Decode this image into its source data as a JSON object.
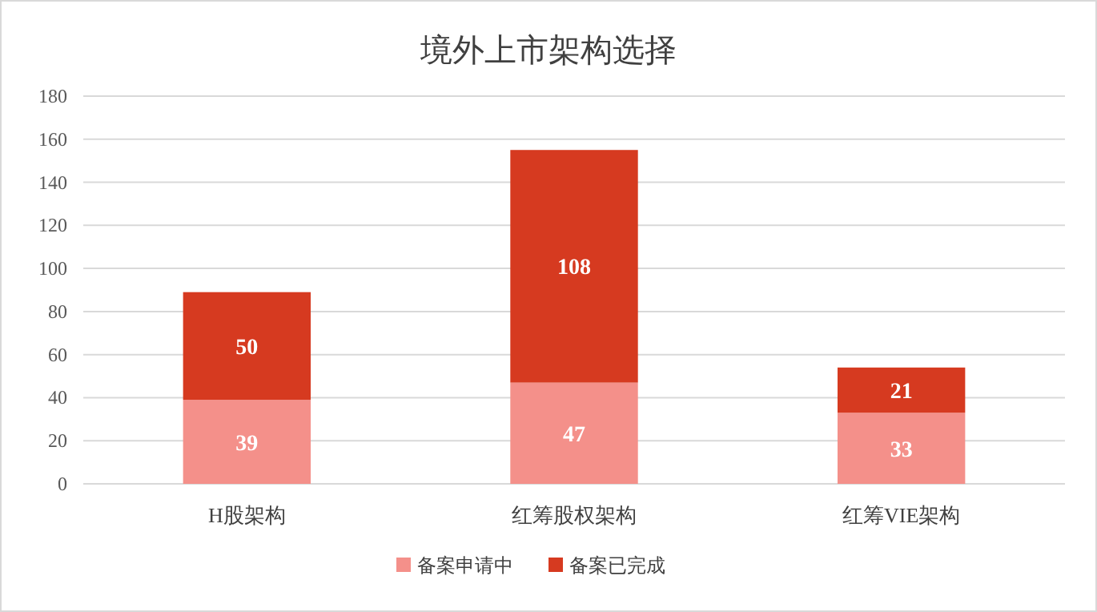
{
  "chart_data": {
    "type": "bar",
    "title": "境外上市架构选择",
    "categories": [
      "H股架构",
      "红筹股权架构",
      "红筹VIE架构"
    ],
    "series": [
      {
        "name": "备案申请中",
        "color": "#f4908a",
        "values": [
          39,
          47,
          33
        ]
      },
      {
        "name": "备案已完成",
        "color": "#d63a20",
        "values": [
          50,
          108,
          21
        ]
      }
    ],
    "stacked": true,
    "ylim": [
      0,
      180
    ],
    "yticks": [
      0,
      20,
      40,
      60,
      80,
      100,
      120,
      140,
      160,
      180
    ],
    "grid": "y",
    "legend": "bottom",
    "data_labels": true
  }
}
